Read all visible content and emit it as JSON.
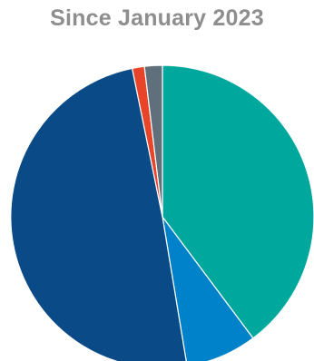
{
  "chart_data": {
    "type": "pie",
    "title": "Since January 2023",
    "start_angle_deg": 0,
    "direction": "clockwise",
    "slices": [
      {
        "value": 39.8,
        "color": "#00a79d"
      },
      {
        "value": 7.6,
        "color": "#0082ca"
      },
      {
        "value": 49.4,
        "color": "#0a4a87"
      },
      {
        "value": 1.3,
        "color": "#e8442a"
      },
      {
        "value": 1.9,
        "color": "#5f6f7c"
      }
    ]
  }
}
